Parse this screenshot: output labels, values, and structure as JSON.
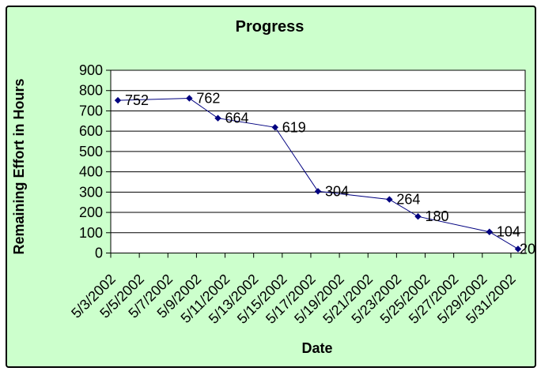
{
  "chart_data": {
    "type": "line",
    "title": "Progress",
    "xlabel": "Date",
    "ylabel": "Remaining Effort in Hours",
    "ylim": [
      0,
      900
    ],
    "y_tick_interval": 100,
    "y_tick_labels": [
      "900",
      "800",
      "700",
      "600",
      "500",
      "400",
      "300",
      "200",
      "100",
      "0"
    ],
    "x_tick_labels": [
      "5/3/2002",
      "5/5/2002",
      "5/7/2002",
      "5/9/2002",
      "5/11/2002",
      "5/13/2002",
      "5/15/2002",
      "5/17/2002",
      "5/19/2002",
      "5/21/2002",
      "5/23/2002",
      "5/25/2002",
      "5/27/2002",
      "5/29/2002",
      "5/31/2002"
    ],
    "x_axis_days": {
      "month": 5,
      "year": 2002,
      "first_day": 3,
      "last_day": 31,
      "label_every_n_days": 2
    },
    "grid": "horizontal",
    "legend": "none",
    "series": [
      {
        "name": "Remaining Effort",
        "points": [
          {
            "date": "5/3/2002",
            "value": 752,
            "label": "752"
          },
          {
            "date": "5/8/2002",
            "value": 762,
            "label": "762"
          },
          {
            "date": "5/10/2002",
            "value": 664,
            "label": "664"
          },
          {
            "date": "5/14/2002",
            "value": 619,
            "label": "619"
          },
          {
            "date": "5/17/2002",
            "value": 304,
            "label": "304"
          },
          {
            "date": "5/22/2002",
            "value": 264,
            "label": "264"
          },
          {
            "date": "5/24/2002",
            "value": 180,
            "label": "180"
          },
          {
            "date": "5/29/2002",
            "value": 104,
            "label": "104"
          },
          {
            "date": "5/31/2002",
            "value": 20,
            "label": "20",
            "label_dx": 2
          }
        ]
      }
    ],
    "colors": {
      "chart_background": "#ccffcc",
      "plot_background": "#ffffff",
      "series_line": "#000080",
      "marker": "#000080",
      "grid_and_axis": "#000000",
      "text": "#000000",
      "frame_border": "#000000"
    }
  }
}
